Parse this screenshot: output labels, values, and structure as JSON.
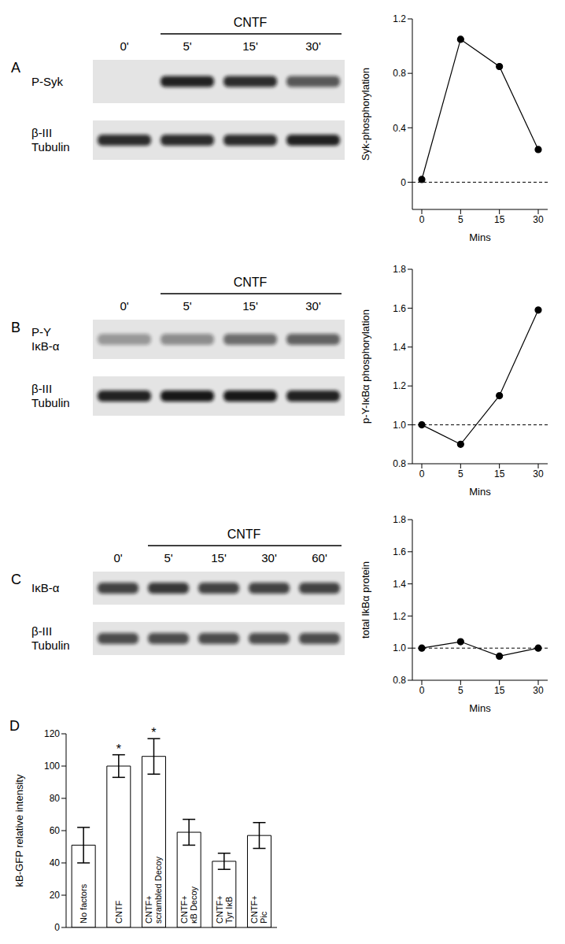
{
  "chart_data": [
    {
      "panel": "A",
      "type": "line",
      "categories": [
        "0",
        "5",
        "15",
        "30"
      ],
      "values": [
        0.02,
        1.05,
        0.85,
        0.24
      ],
      "color": "#000000",
      "marker": "circle",
      "line_style": "solid",
      "x_label": "Mins",
      "y_label": "Syk-phosphorylation",
      "ylim": [
        -0.2,
        1.2
      ],
      "yticks": [
        0,
        0.4,
        0.8,
        1.2
      ],
      "reference_y": 0
    },
    {
      "panel": "B",
      "type": "line",
      "categories": [
        "0",
        "5",
        "15",
        "30"
      ],
      "values": [
        1.0,
        0.9,
        1.15,
        1.59
      ],
      "color": "#000000",
      "marker": "circle",
      "line_style": "solid",
      "x_label": "Mins",
      "y_label": "p-Y-IκBα phosphorylation",
      "ylim": [
        0.8,
        1.8
      ],
      "yticks": [
        0.8,
        {
          "value": 1,
          "label": "1.0"
        },
        1.2,
        1.4,
        1.6,
        1.8
      ],
      "reference_y": 1
    },
    {
      "panel": "C",
      "type": "line",
      "categories": [
        "0",
        "5",
        "15",
        "30"
      ],
      "values": [
        1.0,
        1.04,
        0.95,
        1.0
      ],
      "color": "#000000",
      "marker": "circle",
      "line_style": "solid",
      "x_label": "Mins",
      "y_label": "total IkBα protein",
      "ylim": [
        0.8,
        1.8
      ],
      "yticks": [
        0.8,
        {
          "value": 1,
          "label": "1.0"
        },
        1.2,
        1.4,
        1.6,
        1.8
      ],
      "reference_y": 1
    },
    {
      "panel": "D",
      "type": "bar",
      "categories": [
        "No factors",
        "CNTF",
        "CNTF+ scrambled Decoy",
        "CNTF+ κB Decoy",
        "CNTF+ Tyr IκB",
        "CNTF+ Pic"
      ],
      "values": [
        51,
        100,
        106,
        59,
        41,
        57
      ],
      "errors": [
        11,
        7,
        11,
        8,
        5,
        8
      ],
      "color": "#ffffff",
      "y_label": "kB-GFP relative intensity",
      "ylim": [
        0,
        120
      ],
      "yticks": [
        0,
        20,
        40,
        60,
        80,
        100,
        120
      ],
      "annotations": [
        {
          "category": "CNTF",
          "text": "*"
        },
        {
          "category": "CNTF+ scrambled Decoy",
          "text": "*"
        }
      ]
    }
  ],
  "blots": [
    {
      "panel": "A",
      "treatment": "CNTF",
      "lanes": [
        "0'",
        "5'",
        "15'",
        "30'"
      ],
      "rows": [
        "P-Syk",
        "β-III Tubulin"
      ]
    },
    {
      "panel": "B",
      "treatment": "CNTF",
      "lanes": [
        "0'",
        "5'",
        "15'",
        "30'"
      ],
      "rows": [
        "P-Y IκB-α",
        "β-III Tubulin"
      ]
    },
    {
      "panel": "C",
      "treatment": "CNTF",
      "lanes": [
        "0'",
        "5'",
        "15'",
        "30'",
        "60'"
      ],
      "rows": [
        "IκB-α",
        "β-III Tubulin"
      ]
    }
  ]
}
